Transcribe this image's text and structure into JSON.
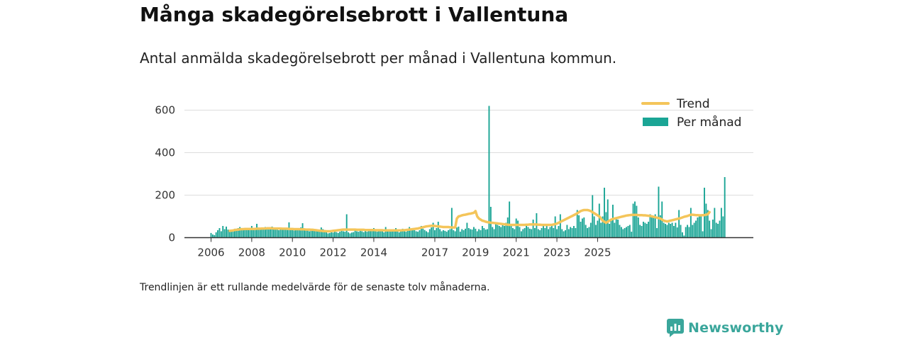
{
  "title": "Många skadegörelsebrott i Vallentuna",
  "subtitle": "Antal anmälda skadegörelsebrott per månad i Vallentuna kommun.",
  "footnote": "Trendlinjen är ett rullande medelvärde för de senaste tolv månaderna.",
  "brand": {
    "name": "Newsworthy",
    "icon": "newsworthy-logo-icon"
  },
  "colors": {
    "bars": "#1aa595",
    "trend": "#f4c55a",
    "grid": "#dddddd",
    "axis": "#333333",
    "brand": "#3aa69b"
  },
  "chart_data": {
    "type": "bar",
    "x_axis": "months from 2006-01",
    "ylim": [
      0,
      630
    ],
    "yticks": [
      0,
      200,
      400,
      600
    ],
    "xticks": [
      "2006",
      "2008",
      "2010",
      "2012",
      "2014",
      "2017",
      "2019",
      "2021",
      "2023",
      "2025"
    ],
    "grid": true,
    "legend_position": "top-right",
    "legend": {
      "trend": "Trend",
      "bars": "Per månad"
    },
    "series": [
      {
        "name": "Per månad",
        "type": "bar",
        "start": "2006-01",
        "values": [
          22,
          15,
          12,
          25,
          35,
          45,
          30,
          55,
          40,
          52,
          38,
          30,
          28,
          35,
          42,
          38,
          45,
          50,
          40,
          36,
          44,
          40,
          35,
          38,
          55,
          42,
          40,
          65,
          48,
          40,
          38,
          42,
          50,
          45,
          38,
          40,
          52,
          40,
          48,
          38,
          35,
          40,
          42,
          38,
          46,
          36,
          72,
          38,
          40,
          34,
          44,
          36,
          42,
          48,
          68,
          35,
          40,
          38,
          30,
          42,
          35,
          38,
          40,
          36,
          34,
          48,
          40,
          30,
          26,
          20,
          22,
          25,
          24,
          30,
          26,
          22,
          28,
          32,
          30,
          28,
          110,
          25,
          20,
          24,
          26,
          35,
          30,
          28,
          40,
          30,
          26,
          32,
          28,
          38,
          30,
          35,
          45,
          32,
          28,
          40,
          35,
          30,
          25,
          50,
          35,
          38,
          28,
          32,
          38,
          45,
          30,
          25,
          30,
          42,
          36,
          28,
          32,
          50,
          38,
          40,
          35,
          30,
          28,
          35,
          55,
          42,
          36,
          30,
          25,
          40,
          48,
          70,
          35,
          45,
          75,
          40,
          30,
          35,
          32,
          28,
          35,
          40,
          140,
          35,
          30,
          48,
          52,
          28,
          40,
          35,
          42,
          70,
          45,
          40,
          38,
          50,
          42,
          30,
          40,
          35,
          55,
          45,
          38,
          40,
          620,
          145,
          50,
          40,
          65,
          60,
          55,
          50,
          60,
          55,
          70,
          95,
          170,
          55,
          45,
          40,
          90,
          80,
          50,
          30,
          40,
          45,
          55,
          50,
          42,
          40,
          85,
          45,
          115,
          40,
          35,
          45,
          55,
          45,
          55,
          40,
          50,
          60,
          45,
          100,
          40,
          55,
          110,
          40,
          30,
          35,
          60,
          40,
          50,
          45,
          55,
          45,
          130,
          105,
          75,
          90,
          95,
          60,
          45,
          50,
          70,
          200,
          100,
          60,
          80,
          160,
          70,
          100,
          235,
          120,
          180,
          65,
          90,
          155,
          70,
          90,
          85,
          60,
          50,
          40,
          45,
          50,
          55,
          60,
          28,
          160,
          170,
          150,
          95,
          60,
          55,
          75,
          70,
          65,
          75,
          110,
          100,
          95,
          110,
          45,
          240,
          105,
          170,
          70,
          65,
          60,
          70,
          65,
          70,
          55,
          70,
          48,
          130,
          60,
          25,
          10,
          50,
          60,
          50,
          140,
          60,
          70,
          80,
          95,
          110,
          100,
          30,
          235,
          160,
          130,
          80,
          40,
          85,
          140,
          70,
          65,
          80,
          140,
          100,
          285
        ]
      },
      {
        "name": "Trend",
        "type": "line",
        "start": "2006-12",
        "values": [
          32,
          33,
          34,
          36,
          37,
          38,
          39,
          40,
          40,
          41,
          41,
          41,
          41,
          41,
          41,
          41,
          42,
          42,
          42,
          43,
          43,
          43,
          44,
          44,
          44,
          44,
          43,
          43,
          43,
          43,
          43,
          42,
          42,
          42,
          42,
          41,
          41,
          41,
          40,
          40,
          40,
          40,
          39,
          39,
          39,
          38,
          38,
          38,
          37,
          37,
          36,
          35,
          34,
          33,
          32,
          31,
          31,
          30,
          30,
          30,
          31,
          32,
          33,
          34,
          35,
          36,
          37,
          38,
          38,
          38,
          38,
          38,
          38,
          38,
          38,
          37,
          37,
          37,
          37,
          37,
          36,
          36,
          36,
          36,
          36,
          36,
          35,
          35,
          35,
          35,
          35,
          34,
          34,
          34,
          34,
          34,
          34,
          34,
          34,
          34,
          34,
          34,
          35,
          35,
          36,
          37,
          38,
          39,
          40,
          41,
          42,
          43,
          45,
          47,
          49,
          51,
          53,
          54,
          55,
          56,
          56,
          55,
          54,
          53,
          52,
          51,
          50,
          50,
          50,
          50,
          49,
          48,
          48,
          48,
          90,
          100,
          102,
          105,
          107,
          108,
          110,
          112,
          113,
          115,
          117,
          125,
          100,
          90,
          85,
          80,
          78,
          75,
          73,
          72,
          70,
          70,
          69,
          68,
          67,
          66,
          65,
          64,
          63,
          62,
          61,
          60,
          60,
          60,
          60,
          60,
          60,
          60,
          60,
          60,
          60,
          61,
          61,
          62,
          62,
          62,
          62,
          62,
          61,
          61,
          60,
          60,
          60,
          60,
          60,
          60,
          60,
          62,
          64,
          66,
          70,
          74,
          78,
          82,
          86,
          90,
          94,
          98,
          102,
          106,
          110,
          115,
          120,
          125,
          128,
          130,
          130,
          130,
          128,
          125,
          120,
          115,
          110,
          105,
          100,
          90,
          80,
          75,
          70,
          75,
          80,
          85,
          88,
          90,
          92,
          94,
          96,
          98,
          100,
          102,
          104,
          105,
          106,
          107,
          107,
          107,
          107,
          106,
          106,
          106,
          105,
          105,
          104,
          103,
          102,
          100,
          98,
          96,
          94,
          92,
          90,
          85,
          80,
          78,
          76,
          78,
          80,
          82,
          84,
          86,
          88,
          90,
          92,
          95,
          98,
          100,
          102,
          105,
          108,
          108,
          107,
          106,
          106,
          105,
          105,
          106,
          106,
          108,
          110,
          120
        ]
      }
    ]
  }
}
